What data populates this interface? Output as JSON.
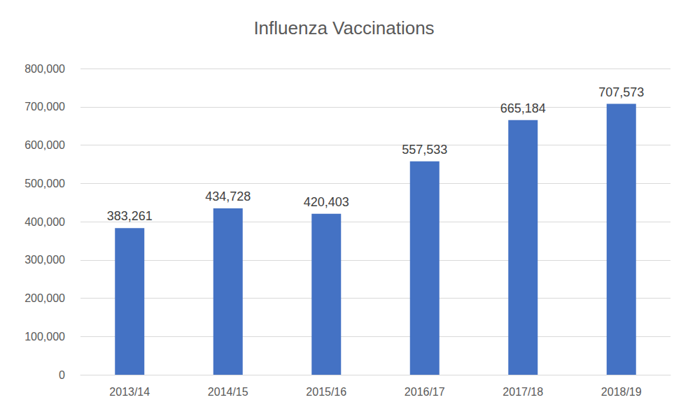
{
  "chart_data": {
    "type": "bar",
    "title": "Influenza Vaccinations",
    "categories": [
      "2013/14",
      "2014/15",
      "2015/16",
      "2016/17",
      "2017/18",
      "2018/19"
    ],
    "values": [
      383261,
      434728,
      420403,
      557533,
      665184,
      707573
    ],
    "value_labels": [
      "383,261",
      "434,728",
      "420,403",
      "557,533",
      "665,184",
      "707,573"
    ],
    "color": "#4472c4",
    "ylim": [
      0,
      800000
    ],
    "yticks": [
      0,
      {
        "value": 100000,
        "label": "100,000"
      },
      {
        "value": 200000,
        "label": "200,000"
      },
      {
        "value": 300000,
        "label": "300,000"
      },
      {
        "value": 400000,
        "label": "400,000"
      },
      {
        "value": 500000,
        "label": "500,000"
      },
      {
        "value": 600000,
        "label": "600,000"
      },
      {
        "value": 700000,
        "label": "700,000"
      },
      {
        "value": 800000,
        "label": "800,000"
      }
    ],
    "grid": true,
    "data_labels": true
  }
}
